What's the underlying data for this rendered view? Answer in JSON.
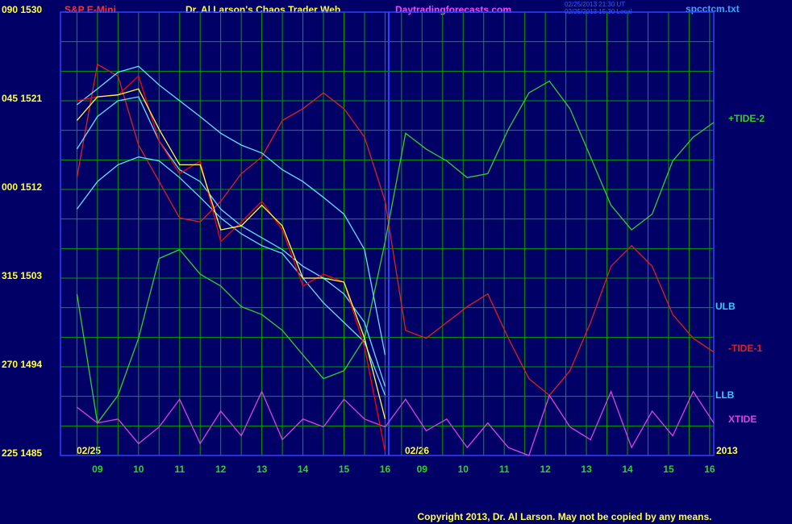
{
  "chart_data": {
    "type": "line",
    "title": "Dr. Al Larson's Chaos Trader Web",
    "symbol": "S&P E-Mini",
    "site": "Daytradingforecasts.com",
    "timestamps": [
      "02/25/2013 21:30 UT",
      "02/25/2013 15:30 Local"
    ],
    "file": "spcctcm.txt",
    "date_labels": [
      "02/25",
      "02/26",
      "2013"
    ],
    "copyright": "Copyright 2013, Dr. Al Larson. May not be copied by any means.",
    "annotations": [
      {
        "text": "ULB",
        "color": "#33ccff"
      },
      {
        "text": "LLB",
        "color": "#33ccff"
      }
    ],
    "x": [
      8.5,
      9,
      9.5,
      10,
      10.5,
      11,
      11.5,
      12,
      12.5,
      13,
      13.5,
      14,
      14.5,
      15,
      15.5,
      16,
      16.5,
      17,
      17.5,
      18,
      18.5,
      19,
      19.5,
      20,
      20.5,
      21,
      21.5,
      22,
      22.5,
      23,
      23.5,
      24
    ],
    "xlim": [
      8.1,
      24.0
    ],
    "xticks": [
      {
        "value": 9,
        "label": "09"
      },
      10,
      11,
      12,
      13,
      14,
      15,
      16,
      {
        "value": 16.9,
        "label": "09"
      },
      {
        "value": 17.9,
        "label": "10"
      },
      {
        "value": 18.9,
        "label": "11"
      },
      {
        "value": 19.9,
        "label": "12"
      },
      {
        "value": 20.9,
        "label": "13"
      },
      {
        "value": 21.9,
        "label": "14"
      },
      {
        "value": 22.9,
        "label": "15"
      },
      {
        "value": 23.9,
        "label": "16"
      }
    ],
    "xminor": [
      8.5,
      9.5,
      10.5,
      11.5,
      12.5,
      13.5,
      14.5,
      15.5,
      16.4,
      17.4,
      18.4,
      19.4,
      20.4,
      21.4,
      22.4,
      23.4
    ],
    "ylim": [
      1485,
      1530
    ],
    "yticks": [
      {
        "value": 1530,
        "label": "090 1530"
      },
      {
        "value": 1521,
        "label": "045 1521"
      },
      {
        "value": 1512,
        "label": "000 1512"
      },
      {
        "value": 1503,
        "label": "315 1503"
      },
      {
        "value": 1494,
        "label": "270 1494"
      },
      {
        "value": 1485,
        "label": "225 1485"
      }
    ],
    "yminor": [
      1488,
      1491,
      1497,
      1500,
      1506,
      1509,
      1515,
      1518,
      1524,
      1527
    ],
    "grid": true,
    "grid_color": "#00a000",
    "series": [
      {
        "name": "-TIDE-1",
        "color": "#e02020",
        "values": [
          1513.2,
          1524.7,
          1523.5,
          1516.5,
          1512.8,
          1509.1,
          1508.7,
          1510.8,
          1513.6,
          1515.3,
          1519.0,
          1520.2,
          1521.8,
          1520.2,
          1517.3,
          1510.8,
          1497.7,
          1496.9,
          1498.5,
          1500.1,
          1501.4,
          1496.9,
          1492.8,
          1491.1,
          1493.6,
          1498.5,
          1504.2,
          1506.3,
          1504.2,
          1499.3,
          1496.9,
          1495.5
        ]
      },
      {
        "name": "+TIDE-2",
        "color": "#30d030",
        "values": [
          1501.4,
          1488.3,
          1491.1,
          1496.9,
          1505.0,
          1505.9,
          1503.4,
          1502.2,
          1500.1,
          1499.3,
          1497.7,
          1495.2,
          1492.8,
          1493.6,
          1496.9,
          1506.7,
          1517.7,
          1516.1,
          1514.9,
          1513.2,
          1513.6,
          1518.1,
          1521.8,
          1523.0,
          1520.2,
          1515.3,
          1510.4,
          1507.9,
          1509.5,
          1514.9,
          1517.3,
          1518.8
        ]
      },
      {
        "name": "XTIDE",
        "color": "#dd44dd",
        "values": [
          1489.9,
          1488.3,
          1488.7,
          1486.2,
          1487.9,
          1490.7,
          1486.2,
          1489.5,
          1487.0,
          1491.5,
          1486.6,
          1488.7,
          1487.9,
          1490.7,
          1488.7,
          1487.9,
          1490.7,
          1487.5,
          1488.7,
          1485.8,
          1488.3,
          1485.8,
          1485.0,
          1491.1,
          1487.9,
          1486.6,
          1491.5,
          1485.8,
          1489.5,
          1487.0,
          1491.5,
          1488.3
        ]
      },
      {
        "color": "#66ddff",
        "values": [
          1520.6,
          1522.2,
          1523.9,
          1524.5,
          1522.6,
          1521.0,
          1519.4,
          1517.7,
          1516.5,
          1515.7,
          1514.0,
          1512.8,
          1511.2,
          1509.5,
          1505.9,
          1495.2,
          null,
          null,
          null,
          null,
          null,
          null,
          null,
          null,
          null,
          null,
          null,
          null,
          null,
          null,
          null,
          null
        ]
      },
      {
        "color": "#66ddff",
        "values": [
          1516.1,
          1519.4,
          1521.0,
          1521.4,
          1516.9,
          1514.0,
          1512.8,
          1510.0,
          1508.3,
          1507.1,
          1505.9,
          1504.2,
          1503.0,
          1501.4,
          1498.5,
          1492.0,
          null,
          null,
          null,
          null,
          null,
          null,
          null,
          null,
          null,
          null,
          null,
          null,
          null,
          null,
          null,
          null
        ]
      },
      {
        "color": "#66ddff",
        "values": [
          1510.0,
          1512.8,
          1514.5,
          1515.3,
          1514.9,
          1513.2,
          1511.2,
          1509.1,
          1507.5,
          1506.3,
          1505.5,
          1503.0,
          1500.5,
          1498.5,
          1496.5,
          1491.1,
          null,
          null,
          null,
          null,
          null,
          null,
          null,
          null,
          null,
          null,
          null,
          null,
          null,
          null,
          null,
          null
        ]
      },
      {
        "color": "#ff0000",
        "values": [
          1521.0,
          1521.4,
          1521.6,
          1523.5,
          1516.9,
          1513.6,
          1514.9,
          1506.7,
          1508.7,
          1510.8,
          1507.9,
          1502.2,
          1503.4,
          1502.6,
          1496.0,
          1485.4,
          null,
          null,
          null,
          null,
          null,
          null,
          null,
          null,
          null,
          null,
          null,
          null,
          null,
          null,
          null,
          null
        ]
      },
      {
        "color": "#ffff40",
        "values": [
          1519.0,
          1521.4,
          1521.6,
          1522.2,
          1518.1,
          1514.5,
          1514.5,
          1507.9,
          1508.3,
          1510.4,
          1508.3,
          1503.0,
          1503.0,
          1502.6,
          1496.9,
          1488.7,
          null,
          null,
          null,
          null,
          null,
          null,
          null,
          null,
          null,
          null,
          null,
          null,
          null,
          null,
          null,
          null
        ]
      }
    ]
  }
}
